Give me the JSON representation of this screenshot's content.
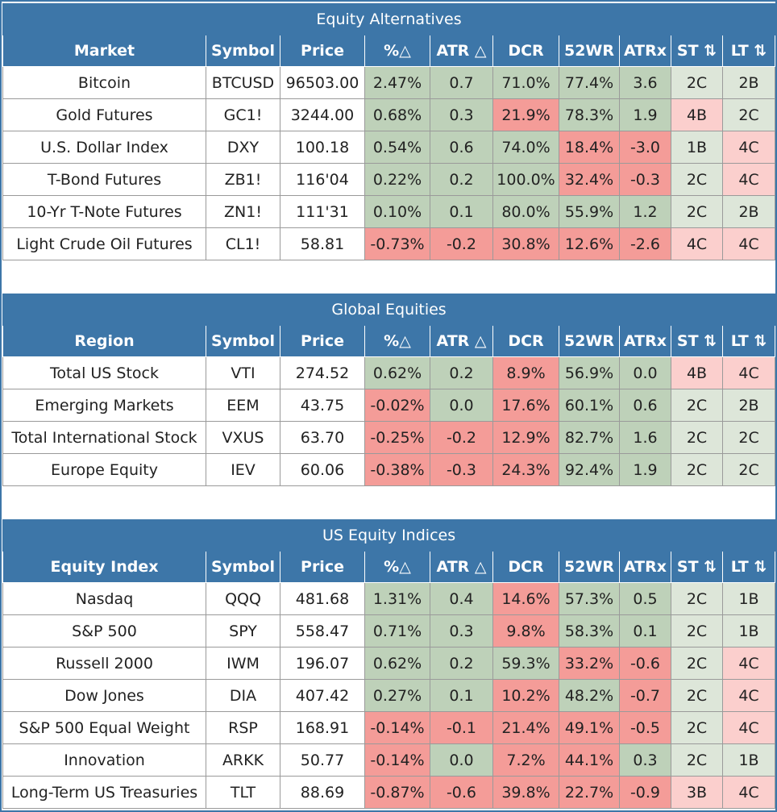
{
  "colors": {
    "header_bg": "#3d76a8",
    "positive": "#bed1b9",
    "negative": "#f49c98",
    "light_positive": "#dde6d9",
    "light_negative": "#fbcfcd"
  },
  "sections": [
    {
      "title": "Equity Alternatives",
      "headers": [
        "Market",
        "Symbol",
        "Price",
        "%△",
        "ATR △",
        "DCR",
        "52WR",
        "ATRx",
        "ST ⇅",
        "LT ⇅"
      ],
      "rows": [
        [
          "Bitcoin",
          "BTCUSD",
          "96503.00",
          "2.47%",
          "0.7",
          "71.0%",
          "77.4%",
          "3.6",
          "2C",
          "2B"
        ],
        [
          "Gold Futures",
          "GC1!",
          "3244.00",
          "0.68%",
          "0.3",
          "21.9%",
          "78.3%",
          "1.9",
          "4B",
          "2C"
        ],
        [
          "U.S. Dollar Index",
          "DXY",
          "100.18",
          "0.54%",
          "0.6",
          "74.0%",
          "18.4%",
          "-3.0",
          "1B",
          "4C"
        ],
        [
          "T-Bond Futures",
          "ZB1!",
          "116'04",
          "0.22%",
          "0.2",
          "100.0%",
          "32.4%",
          "-0.3",
          "2C",
          "4C"
        ],
        [
          "10-Yr T-Note Futures",
          "ZN1!",
          "111'31",
          "0.10%",
          "0.1",
          "80.0%",
          "55.9%",
          "1.2",
          "2C",
          "2B"
        ],
        [
          "Light Crude Oil Futures",
          "CL1!",
          "58.81",
          "-0.73%",
          "-0.2",
          "30.8%",
          "12.6%",
          "-2.6",
          "4C",
          "4C"
        ]
      ]
    },
    {
      "title": "Global Equities",
      "headers": [
        "Region",
        "Symbol",
        "Price",
        "%△",
        "ATR △",
        "DCR",
        "52WR",
        "ATRx",
        "ST ⇅",
        "LT ⇅"
      ],
      "rows": [
        [
          "Total US Stock",
          "VTI",
          "274.52",
          "0.62%",
          "0.2",
          "8.9%",
          "56.9%",
          "0.0",
          "4B",
          "4C"
        ],
        [
          "Emerging Markets",
          "EEM",
          "43.75",
          "-0.02%",
          "0.0",
          "17.6%",
          "60.1%",
          "0.6",
          "2C",
          "2B"
        ],
        [
          "Total International Stock",
          "VXUS",
          "63.70",
          "-0.25%",
          "-0.2",
          "12.9%",
          "82.7%",
          "1.6",
          "2C",
          "2C"
        ],
        [
          "Europe Equity",
          "IEV",
          "60.06",
          "-0.38%",
          "-0.3",
          "24.3%",
          "92.4%",
          "1.9",
          "2C",
          "2C"
        ]
      ]
    },
    {
      "title": "US Equity Indices",
      "headers": [
        "Equity Index",
        "Symbol",
        "Price",
        "%△",
        "ATR △",
        "DCR",
        "52WR",
        "ATRx",
        "ST ⇅",
        "LT ⇅"
      ],
      "rows": [
        [
          "Nasdaq",
          "QQQ",
          "481.68",
          "1.31%",
          "0.4",
          "14.6%",
          "57.3%",
          "0.5",
          "2C",
          "1B"
        ],
        [
          "S&P 500",
          "SPY",
          "558.47",
          "0.71%",
          "0.3",
          "9.8%",
          "58.3%",
          "0.1",
          "2C",
          "1B"
        ],
        [
          "Russell 2000",
          "IWM",
          "196.07",
          "0.62%",
          "0.2",
          "59.3%",
          "33.2%",
          "-0.6",
          "2C",
          "4C"
        ],
        [
          "Dow Jones",
          "DIA",
          "407.42",
          "0.27%",
          "0.1",
          "10.2%",
          "48.2%",
          "-0.7",
          "2C",
          "4C"
        ],
        [
          "S&P 500 Equal Weight",
          "RSP",
          "168.91",
          "-0.14%",
          "-0.1",
          "21.4%",
          "49.1%",
          "-0.5",
          "2C",
          "4C"
        ],
        [
          "Innovation",
          "ARKK",
          "50.77",
          "-0.14%",
          "0.0",
          "7.2%",
          "44.1%",
          "0.3",
          "2C",
          "1B"
        ],
        [
          "Long-Term US Treasuries",
          "TLT",
          "88.69",
          "-0.87%",
          "-0.6",
          "39.8%",
          "22.7%",
          "-0.9",
          "3B",
          "4C"
        ]
      ]
    }
  ]
}
